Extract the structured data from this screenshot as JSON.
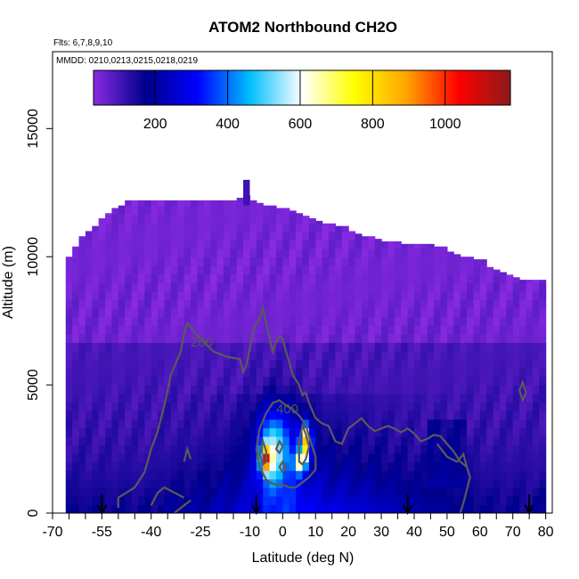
{
  "chart_data": {
    "type": "heatmap",
    "title": "ATOM2 Northbound CH2O",
    "subtitle_flights": "Flts: 6,7,8,9,10",
    "subtitle_dates": "MMDD: 0210,0213,0215,0218,0219",
    "xlabel": "Latitude (deg N)",
    "ylabel": "Altitude (m)",
    "xlim": [
      -70,
      82
    ],
    "ylim": [
      0,
      18000
    ],
    "x_ticks": [
      -70,
      -55,
      -40,
      -25,
      -10,
      0,
      10,
      20,
      30,
      40,
      50,
      60,
      70,
      80
    ],
    "x_tick_labels": [
      "-70",
      "-55",
      "-40",
      "-25",
      "-10",
      "0",
      "10",
      "20",
      "30",
      "40",
      "50",
      "60",
      "70",
      "80"
    ],
    "y_ticks": [
      0,
      5000,
      10000,
      15000
    ],
    "y_tick_labels": [
      "0",
      "5000",
      "10000",
      "15000"
    ],
    "colorbar": {
      "range": [
        30,
        1180
      ],
      "ticks": [
        200,
        400,
        600,
        800,
        1000
      ],
      "tick_labels": [
        "200",
        "400",
        "600",
        "800",
        "1000"
      ],
      "colors": [
        "#8a2be2",
        "#00008b",
        "#0000ff",
        "#00bfff",
        "#ffffff",
        "#ffff00",
        "#ffa500",
        "#ff0000",
        "#8b1a1a"
      ]
    },
    "contours": [
      {
        "level": 200,
        "label": "200",
        "label_at": [
          -28,
          6500
        ]
      },
      {
        "level": 400,
        "label": "400",
        "label_at": [
          -2,
          3900
        ]
      }
    ],
    "profile_arrows_lat": [
      -55,
      -8,
      38,
      75
    ],
    "data_extent": {
      "lat_min": -65,
      "lat_max": 80,
      "lat_cells": [
        -65,
        -63,
        -61,
        -59,
        -57,
        -55,
        -53,
        -51,
        -49,
        -47,
        -45,
        -43,
        -41,
        -39,
        -37,
        -35,
        -33,
        -31,
        -29,
        -27,
        -25,
        -23,
        -21,
        -19,
        -17,
        -15,
        -13,
        -11,
        -9,
        -7,
        -5,
        -3,
        -1,
        1,
        3,
        5,
        7,
        9,
        11,
        13,
        15,
        17,
        19,
        21,
        23,
        25,
        27,
        29,
        31,
        33,
        35,
        37,
        39,
        41,
        43,
        45,
        47,
        49,
        51,
        53,
        55,
        57,
        59,
        61,
        63,
        65,
        67,
        69,
        71,
        73,
        75,
        77,
        79
      ],
      "top_altitude_m": [
        10000,
        10400,
        10800,
        11000,
        11200,
        11500,
        11700,
        11900,
        12000,
        12200,
        12200,
        12200,
        12200,
        12200,
        12200,
        12200,
        12200,
        12200,
        12200,
        12200,
        12200,
        12200,
        12200,
        12200,
        12200,
        12200,
        12300,
        12400,
        12200,
        12100,
        12000,
        12000,
        11900,
        11900,
        11800,
        11700,
        11600,
        11500,
        11400,
        11300,
        11300,
        11200,
        11200,
        11000,
        10900,
        10800,
        10800,
        10700,
        10600,
        10600,
        10600,
        10500,
        10500,
        10500,
        10500,
        10500,
        10400,
        10400,
        10200,
        10100,
        10000,
        10000,
        9900,
        9900,
        9600,
        9500,
        9400,
        9300,
        9200,
        9100,
        9100,
        9100,
        9100
      ]
    }
  }
}
